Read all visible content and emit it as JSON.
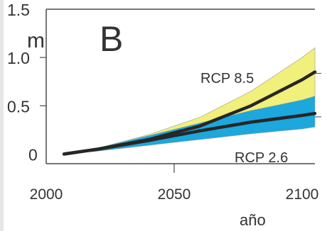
{
  "chart_data": {
    "type": "area",
    "panel_label": "B",
    "ylabel": "m",
    "xlabel": "año",
    "xlim": [
      2000,
      2105
    ],
    "ylim": [
      -0.1,
      1.5
    ],
    "x_ticks": [
      {
        "value": 2000,
        "label": "2000"
      },
      {
        "value": 2050,
        "label": "2050"
      },
      {
        "value": 2100,
        "label": "2100"
      }
    ],
    "y_ticks": [
      {
        "value": 1.5,
        "label": "1.5"
      },
      {
        "value": 1.0,
        "label": "1.0"
      },
      {
        "value": 0.5,
        "label": "0.5"
      },
      {
        "value": 0.0,
        "label": "0"
      }
    ],
    "series": [
      {
        "name": "RCP 8.5",
        "color": "#f0f07a",
        "line_color": "#262626",
        "x": [
          2007,
          2020,
          2040,
          2060,
          2080,
          2100,
          2105
        ],
        "mean": [
          0.0,
          0.05,
          0.15,
          0.29,
          0.5,
          0.77,
          0.85
        ],
        "lower": [
          0.0,
          0.04,
          0.11,
          0.21,
          0.34,
          0.52,
          0.58
        ],
        "upper": [
          0.0,
          0.06,
          0.2,
          0.38,
          0.65,
          1.0,
          1.1
        ]
      },
      {
        "name": "RCP 2.6",
        "color": "#1ca8dc",
        "line_color": "#262626",
        "x": [
          2007,
          2020,
          2040,
          2060,
          2080,
          2100,
          2105
        ],
        "mean": [
          0.0,
          0.05,
          0.14,
          0.24,
          0.33,
          0.4,
          0.42
        ],
        "lower": [
          0.0,
          0.03,
          0.09,
          0.15,
          0.21,
          0.26,
          0.28
        ],
        "upper": [
          0.0,
          0.06,
          0.19,
          0.32,
          0.45,
          0.56,
          0.6
        ]
      }
    ],
    "legend": "inline"
  },
  "colors": {
    "axis": "#4a4a4a",
    "text": "#333333",
    "rcp85_band": "#f0f07a",
    "rcp26_band": "#1ca8dc",
    "mean_line": "#262626"
  }
}
